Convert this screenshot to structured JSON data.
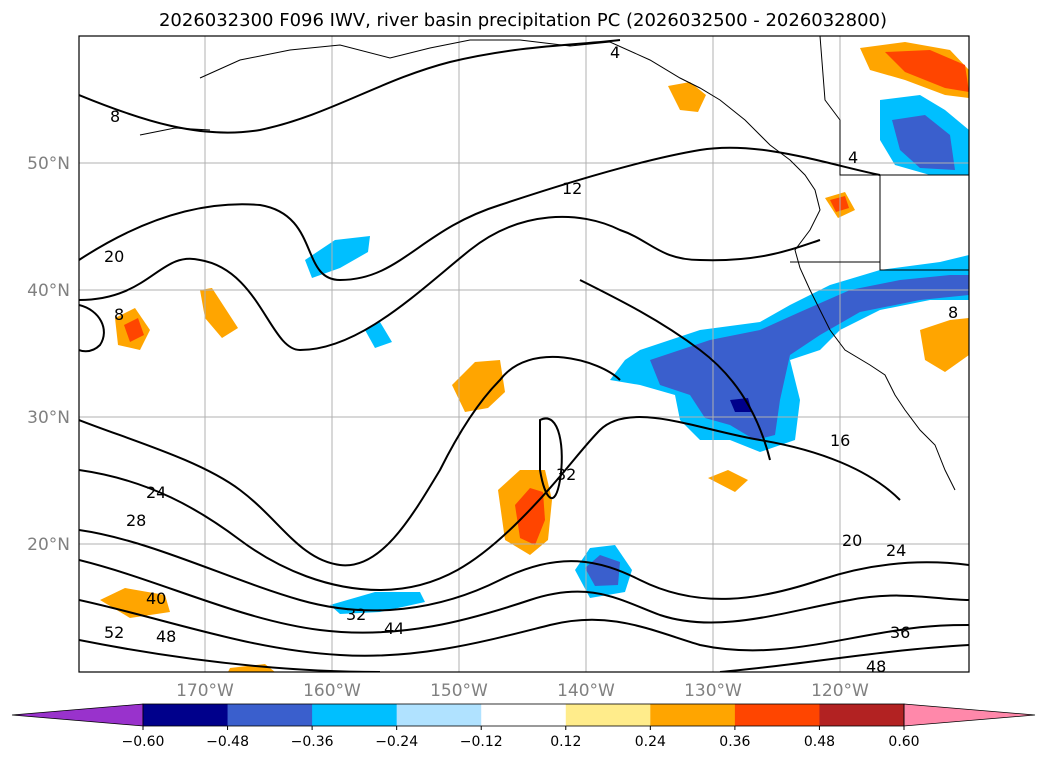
{
  "title": "2026032300 F096 IWV, river basin precipitation PC (2026032500 - 2026032800)",
  "lat_labels": [
    "50°N",
    "40°N",
    "30°N",
    "20°N"
  ],
  "lon_labels": [
    "170°W",
    "160°W",
    "150°W",
    "140°W",
    "130°W",
    "120°W"
  ],
  "colorbar": {
    "ticks": [
      "−0.60",
      "−0.48",
      "−0.36",
      "−0.24",
      "−0.12",
      "0.12",
      "0.24",
      "0.36",
      "0.48",
      "0.60"
    ],
    "colors": [
      "#9932cc",
      "#00008b",
      "#3a5fcd",
      "#00bfff",
      "#b0e2ff",
      "#ffffff",
      "#ffec8b",
      "#ffa500",
      "#ff4500",
      "#b22222",
      "#ff88aa"
    ]
  },
  "contour_labels": [
    "4",
    "8",
    "12",
    "4",
    "20",
    "8",
    "24",
    "28",
    "32",
    "40",
    "52",
    "48",
    "32",
    "44",
    "16",
    "20",
    "24",
    "36",
    "48",
    "8"
  ],
  "colors": {
    "positive_light": "#ffec8b",
    "positive": "#ffa500",
    "positive_strong": "#ff4500",
    "negative_light": "#b0e2ff",
    "negative": "#00bfff",
    "negative_strong": "#3a5fcd",
    "negative_max": "#00008b"
  }
}
